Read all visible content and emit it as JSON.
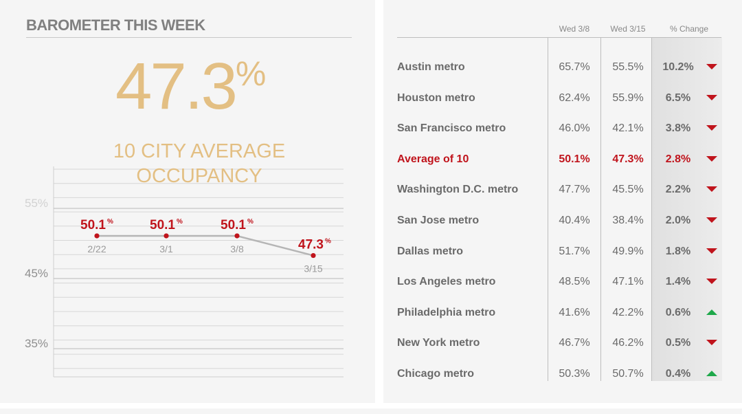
{
  "left": {
    "title": "BAROMETER THIS WEEK",
    "headline_value": "47.3",
    "headline_unit": "%",
    "subtitle_line1": "10 CITY AVERAGE",
    "subtitle_line2": "OCCUPANCY"
  },
  "chart_data": {
    "type": "line",
    "title": "10 CITY AVERAGE OCCUPANCY",
    "x": [
      "2/22",
      "3/1",
      "3/8",
      "3/15"
    ],
    "values": [
      50.1,
      50.1,
      50.1,
      47.3
    ],
    "point_labels": [
      "50.1",
      "50.1",
      "50.1",
      "47.3"
    ],
    "label_unit": "%",
    "ylim": [
      30,
      60
    ],
    "y_ticks": [
      "55%",
      "45%",
      "35%"
    ],
    "y_tick_values": [
      55,
      45,
      35
    ],
    "grid": true,
    "colors": {
      "line": "#b5b5b5",
      "point": "#c0141c",
      "label": "#c0141c",
      "axis_text": "#9a9a9a"
    }
  },
  "table": {
    "headers": [
      "Wed 3/8",
      "Wed 3/15",
      "% Change"
    ],
    "rows": [
      {
        "city": "Austin metro",
        "wed38": "65.7%",
        "wed315": "55.5%",
        "change": "10.2%",
        "direction": "down"
      },
      {
        "city": "Houston metro",
        "wed38": "62.4%",
        "wed315": "55.9%",
        "change": "6.5%",
        "direction": "down"
      },
      {
        "city": "San Francisco metro",
        "wed38": "46.0%",
        "wed315": "42.1%",
        "change": "3.8%",
        "direction": "down"
      },
      {
        "city": "Average of 10",
        "wed38": "50.1%",
        "wed315": "47.3%",
        "change": "2.8%",
        "direction": "down",
        "highlight": true
      },
      {
        "city": "Washington D.C. metro",
        "wed38": "47.7%",
        "wed315": "45.5%",
        "change": "2.2%",
        "direction": "down"
      },
      {
        "city": "San Jose metro",
        "wed38": "40.4%",
        "wed315": "38.4%",
        "change": "2.0%",
        "direction": "down"
      },
      {
        "city": "Dallas metro",
        "wed38": "51.7%",
        "wed315": "49.9%",
        "change": "1.8%",
        "direction": "down"
      },
      {
        "city": "Los Angeles metro",
        "wed38": "48.5%",
        "wed315": "47.1%",
        "change": "1.4%",
        "direction": "down"
      },
      {
        "city": "Philadelphia metro",
        "wed38": "41.6%",
        "wed315": "42.2%",
        "change": "0.6%",
        "direction": "up"
      },
      {
        "city": "New York metro",
        "wed38": "46.7%",
        "wed315": "46.2%",
        "change": "0.5%",
        "direction": "down"
      },
      {
        "city": "Chicago metro",
        "wed38": "50.3%",
        "wed315": "50.7%",
        "change": "0.4%",
        "direction": "up"
      }
    ],
    "colors": {
      "down": "#c0141c",
      "up": "#1ea84a",
      "highlight": "#c0141c",
      "change_col_bg": "#e4e4e4"
    }
  }
}
